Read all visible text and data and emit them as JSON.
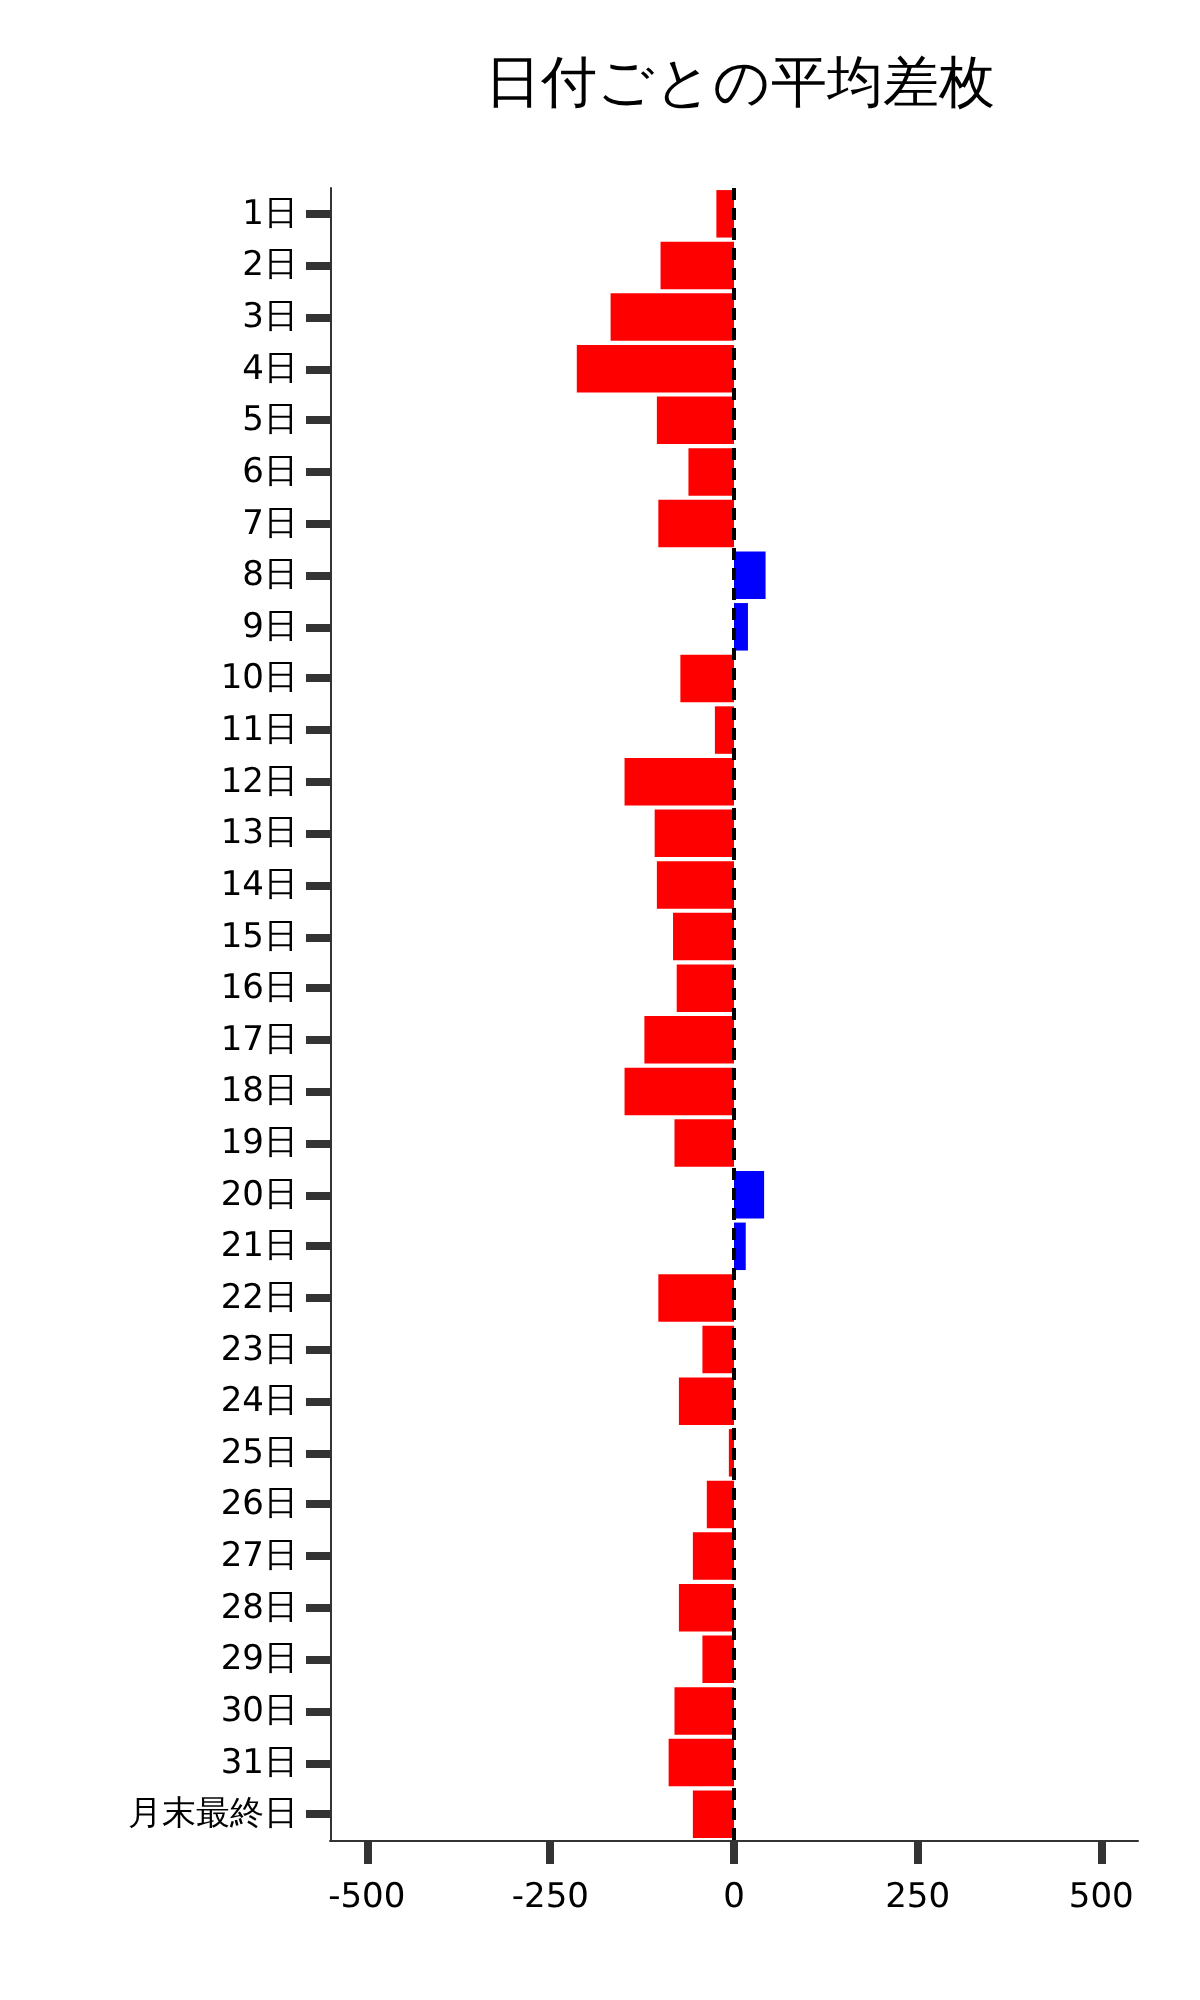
{
  "chart_data": {
    "type": "bar",
    "orientation": "horizontal",
    "title": "日付ごとの平均差枚",
    "categories": [
      "1日",
      "2日",
      "3日",
      "4日",
      "5日",
      "6日",
      "7日",
      "8日",
      "9日",
      "10日",
      "11日",
      "12日",
      "13日",
      "14日",
      "15日",
      "16日",
      "17日",
      "18日",
      "19日",
      "20日",
      "21日",
      "22日",
      "23日",
      "24日",
      "25日",
      "26日",
      "27日",
      "28日",
      "29日",
      "30日",
      "31日",
      "月末最終日"
    ],
    "values": [
      -24,
      -100,
      -168,
      -214,
      -105,
      -62,
      -103,
      43,
      19,
      -73,
      -26,
      -149,
      -108,
      -105,
      -83,
      -78,
      -122,
      -149,
      -81,
      41,
      16,
      -103,
      -43,
      -75,
      -7,
      -37,
      -56,
      -75,
      -43,
      -81,
      -89,
      -56
    ],
    "colors": [
      "#ff0000",
      "#ff0000",
      "#ff0000",
      "#ff0000",
      "#ff0000",
      "#ff0000",
      "#ff0000",
      "#0000ff",
      "#0000ff",
      "#ff0000",
      "#ff0000",
      "#ff0000",
      "#ff0000",
      "#ff0000",
      "#ff0000",
      "#ff0000",
      "#ff0000",
      "#ff0000",
      "#ff0000",
      "#0000ff",
      "#0000ff",
      "#ff0000",
      "#ff0000",
      "#ff0000",
      "#ff0000",
      "#ff0000",
      "#ff0000",
      "#ff0000",
      "#ff0000",
      "#ff0000",
      "#ff0000",
      "#ff0000"
    ],
    "xlim": [
      -550,
      550
    ],
    "xticks": [
      -500,
      -250,
      0,
      250,
      500
    ],
    "ref_lines": [
      {
        "axis": "x",
        "value": 0,
        "color": "#000000",
        "line_style": "dashed"
      }
    ],
    "grid": false
  }
}
